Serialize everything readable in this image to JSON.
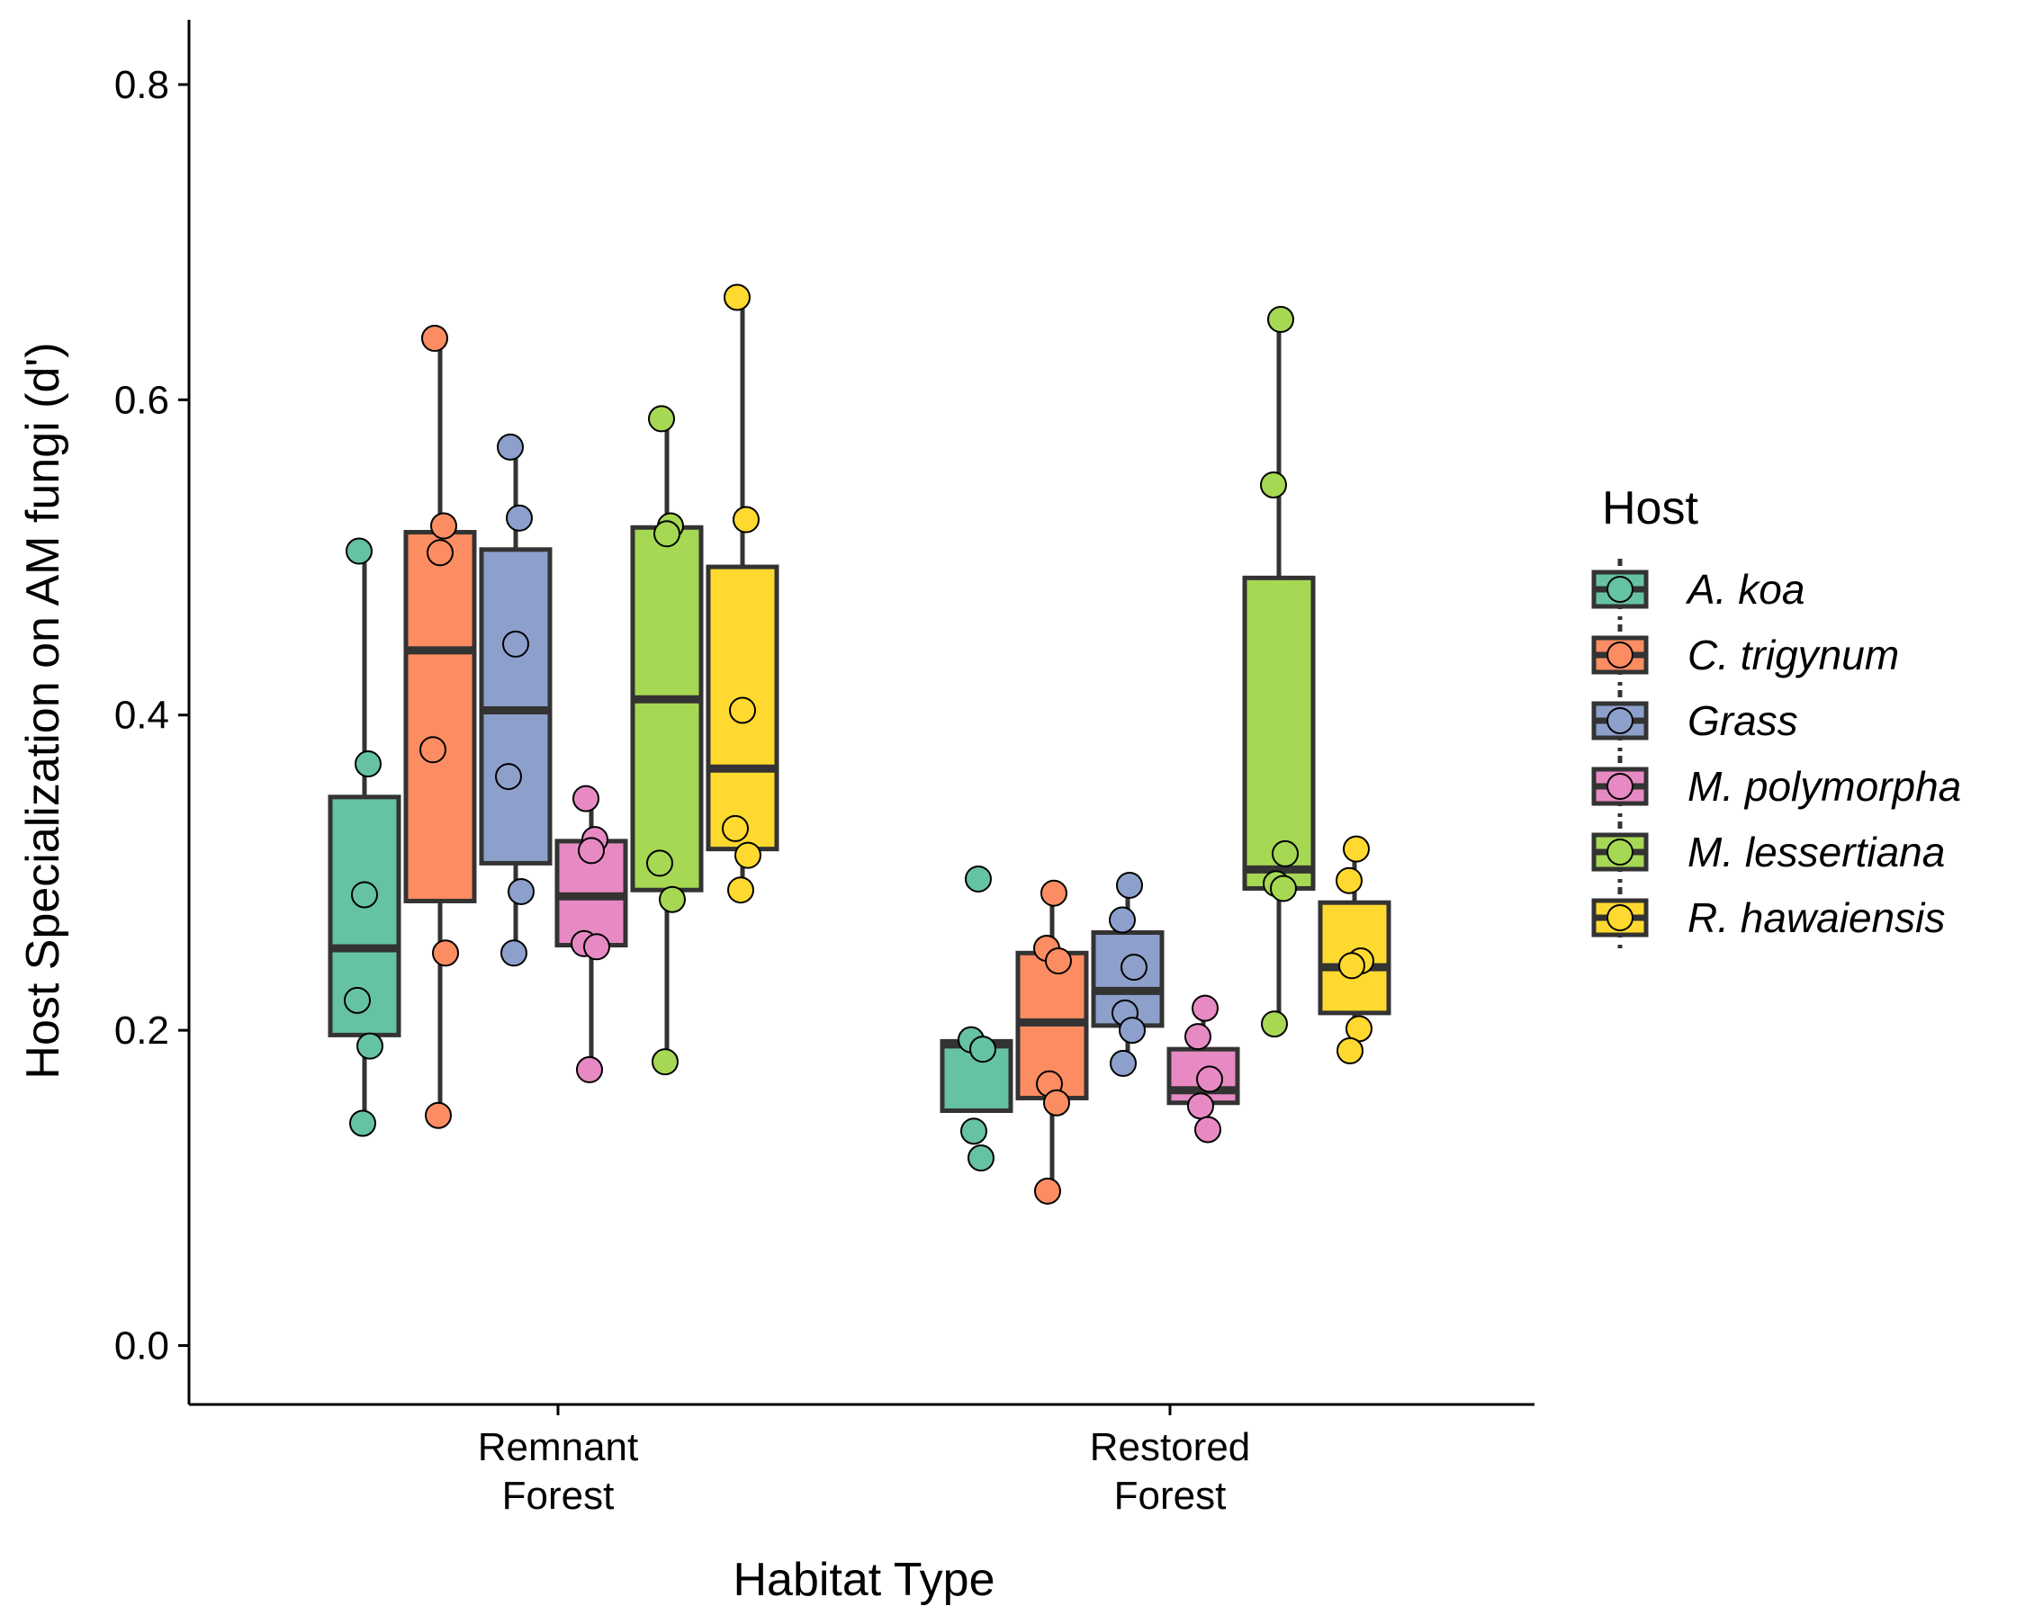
{
  "chart_data": {
    "type": "box",
    "xlabel": "Habitat Type",
    "ylabel": "Host Specialization on AM fungi (d')",
    "ylim": [
      -0.04,
      0.84
    ],
    "yticks": [
      "0.0",
      "0.2",
      "0.4",
      "0.6",
      "0.8"
    ],
    "ytick_values": [
      0.0,
      0.2,
      0.4,
      0.6,
      0.8
    ],
    "categories": [
      "Remnant\nForest",
      "Restored\nForest"
    ],
    "grid": false,
    "legend": {
      "title": "Host",
      "position": "right"
    },
    "series": [
      {
        "name": "A. koa",
        "color": "#66C2A5",
        "boxes": [
          {
            "q1": 0.197,
            "median": 0.252,
            "q3": 0.348,
            "whisker_low": 0.141,
            "whisker_high": 0.504,
            "points": [
              0.504,
              0.369,
              0.286,
              0.219,
              0.19,
              0.141
            ]
          },
          {
            "q1": 0.149,
            "median": 0.191,
            "q3": 0.193,
            "whisker_low": 0.149,
            "whisker_high": 0.193,
            "points": [
              0.296,
              0.194,
              0.188,
              0.136,
              0.119
            ]
          }
        ]
      },
      {
        "name": "C. trigynum",
        "color": "#FC8D62",
        "boxes": [
          {
            "q1": 0.282,
            "median": 0.441,
            "q3": 0.516,
            "whisker_low": 0.146,
            "whisker_high": 0.639,
            "points": [
              0.639,
              0.52,
              0.503,
              0.378,
              0.249,
              0.146
            ]
          },
          {
            "q1": 0.157,
            "median": 0.205,
            "q3": 0.249,
            "whisker_low": 0.098,
            "whisker_high": 0.287,
            "points": [
              0.287,
              0.252,
              0.244,
              0.166,
              0.154,
              0.098
            ]
          }
        ]
      },
      {
        "name": "Grass",
        "color": "#8DA0CB",
        "boxes": [
          {
            "q1": 0.306,
            "median": 0.403,
            "q3": 0.505,
            "whisker_low": 0.249,
            "whisker_high": 0.57,
            "points": [
              0.57,
              0.525,
              0.445,
              0.361,
              0.288,
              0.249
            ]
          },
          {
            "q1": 0.203,
            "median": 0.225,
            "q3": 0.262,
            "whisker_low": 0.179,
            "whisker_high": 0.292,
            "points": [
              0.292,
              0.27,
              0.24,
              0.211,
              0.2,
              0.179
            ]
          }
        ]
      },
      {
        "name": "M. polymorpha",
        "color": "#E78AC3",
        "boxes": [
          {
            "q1": 0.254,
            "median": 0.285,
            "q3": 0.32,
            "whisker_low": 0.175,
            "whisker_high": 0.347,
            "points": [
              0.347,
              0.321,
              0.314,
              0.255,
              0.253,
              0.175
            ]
          },
          {
            "q1": 0.154,
            "median": 0.162,
            "q3": 0.188,
            "whisker_low": 0.137,
            "whisker_high": 0.214,
            "points": [
              0.214,
              0.196,
              0.169,
              0.152,
              0.137
            ]
          }
        ]
      },
      {
        "name": "M. lessertiana",
        "color": "#A6D854",
        "boxes": [
          {
            "q1": 0.289,
            "median": 0.41,
            "q3": 0.519,
            "whisker_low": 0.18,
            "whisker_high": 0.588,
            "points": [
              0.588,
              0.52,
              0.515,
              0.306,
              0.283,
              0.18
            ]
          },
          {
            "q1": 0.29,
            "median": 0.302,
            "q3": 0.487,
            "whisker_low": 0.204,
            "whisker_high": 0.651,
            "points": [
              0.651,
              0.546,
              0.312,
              0.293,
              0.29,
              0.204
            ]
          }
        ]
      },
      {
        "name": "R. hawaiensis",
        "color": "#FFD92F",
        "boxes": [
          {
            "q1": 0.315,
            "median": 0.366,
            "q3": 0.494,
            "whisker_low": 0.289,
            "whisker_high": 0.665,
            "points": [
              0.665,
              0.524,
              0.403,
              0.328,
              0.311,
              0.289
            ]
          },
          {
            "q1": 0.211,
            "median": 0.24,
            "q3": 0.281,
            "whisker_low": 0.187,
            "whisker_high": 0.315,
            "points": [
              0.315,
              0.295,
              0.244,
              0.241,
              0.201,
              0.187
            ]
          }
        ]
      }
    ]
  }
}
